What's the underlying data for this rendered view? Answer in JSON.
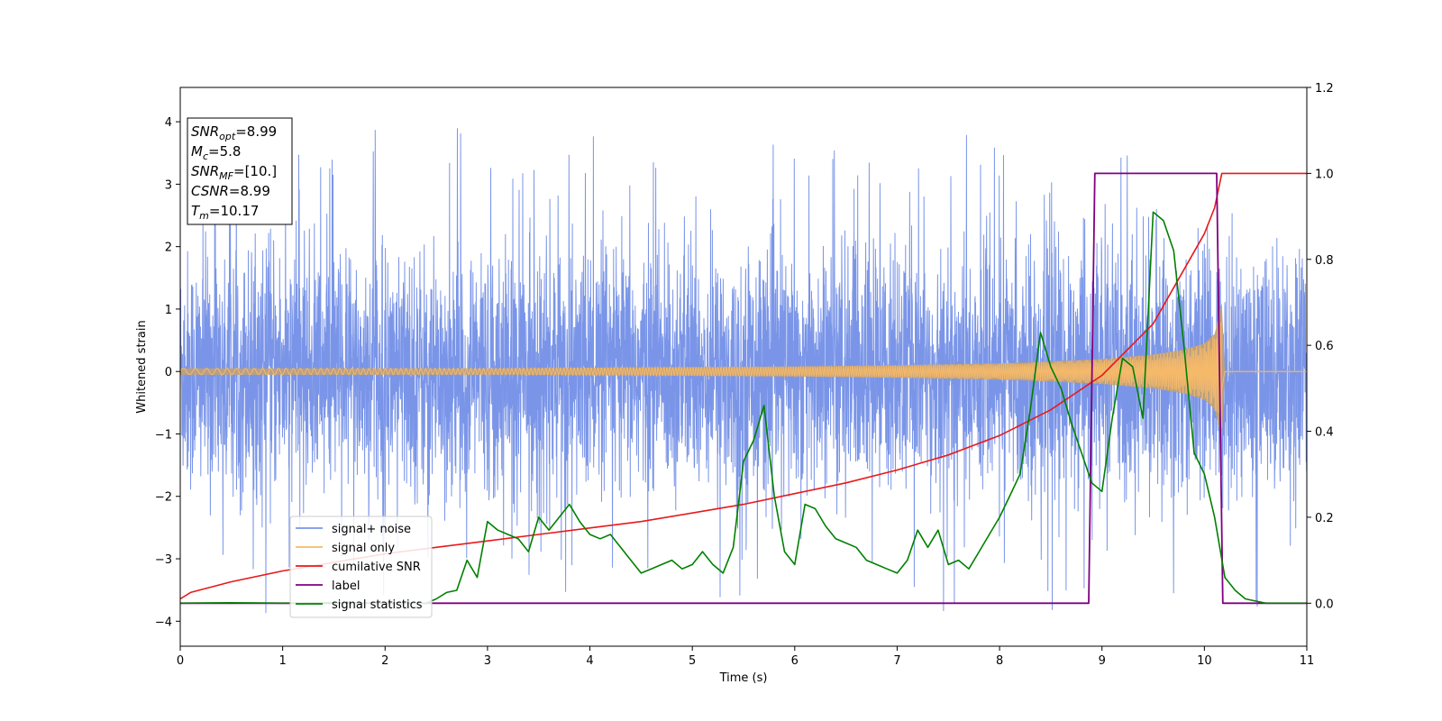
{
  "chart_data": {
    "type": "line",
    "xlabel": "Time (s)",
    "ylabel": "Whitened strain",
    "xlim": [
      0,
      11
    ],
    "ylim_left": [
      -4.4,
      4.55
    ],
    "ylim_right": [
      -0.1,
      1.2
    ],
    "x_ticks": [
      0,
      1,
      2,
      3,
      4,
      5,
      6,
      7,
      8,
      9,
      10,
      11
    ],
    "y_ticks_left": [
      -4,
      -3,
      -2,
      -1,
      0,
      1,
      2,
      3,
      4
    ],
    "y_ticks_right": [
      "0.0",
      "0.2",
      "0.4",
      "0.6",
      "0.8",
      "1.0",
      "1.2"
    ],
    "grid": false,
    "legend_location": "lower-left",
    "info_box": {
      "lines": [
        {
          "label": "SNR",
          "sub": "opt",
          "value": "=8.99"
        },
        {
          "label": "M",
          "sub": "c",
          "value": "=5.8"
        },
        {
          "label": "SNR",
          "sub": "MF",
          "value": "=[10.]"
        },
        {
          "label": "CSNR",
          "sub": "",
          "value": "=8.99"
        },
        {
          "label": "T",
          "sub": "m",
          "value": "=10.17"
        }
      ]
    },
    "series": [
      {
        "name": "signal+ noise",
        "axis": "left",
        "color": "#7a95e8",
        "description_values": {
          "typical_envelope": [
            -2.2,
            2.2
          ],
          "max_spikes": [
            4.17,
            -3.95
          ]
        }
      },
      {
        "name": "signal only",
        "axis": "left",
        "color": "#f5b96a",
        "envelope_x": [
          0,
          1,
          2,
          3,
          4,
          5,
          6,
          7,
          8,
          8.5,
          9,
          9.5,
          9.8,
          10.0,
          10.1,
          10.17,
          10.2,
          11
        ],
        "envelope_y": [
          0.05,
          0.05,
          0.05,
          0.05,
          0.06,
          0.07,
          0.08,
          0.1,
          0.13,
          0.16,
          0.2,
          0.27,
          0.35,
          0.45,
          0.6,
          1.1,
          0.01,
          0.01
        ]
      },
      {
        "name": "cumilative SNR",
        "axis": "right",
        "color": "#e8191b",
        "x": [
          0,
          0.1,
          0.5,
          1,
          1.5,
          2,
          2.5,
          3,
          3.5,
          4,
          4.5,
          5,
          5.5,
          6,
          6.5,
          7,
          7.5,
          8,
          8.5,
          9,
          9.5,
          10,
          10.1,
          10.17,
          10.2,
          11
        ],
        "values": [
          0.01,
          0.025,
          0.05,
          0.075,
          0.095,
          0.115,
          0.13,
          0.145,
          0.16,
          0.175,
          0.19,
          0.21,
          0.23,
          0.255,
          0.28,
          0.31,
          0.345,
          0.39,
          0.45,
          0.53,
          0.65,
          0.86,
          0.92,
          1.0,
          1.0,
          1.0
        ]
      },
      {
        "name": "label",
        "axis": "right",
        "color": "#800080",
        "x": [
          0,
          8.87,
          8.93,
          10.12,
          10.18,
          11
        ],
        "values": [
          0,
          0,
          1,
          1,
          0,
          0
        ]
      },
      {
        "name": "signal statistics",
        "axis": "right",
        "color": "#008000",
        "x": [
          0,
          0.5,
          1,
          1.5,
          2,
          2.4,
          2.5,
          2.6,
          2.7,
          2.8,
          2.9,
          3.0,
          3.1,
          3.2,
          3.3,
          3.4,
          3.5,
          3.6,
          3.7,
          3.8,
          3.9,
          4.0,
          4.1,
          4.2,
          4.3,
          4.4,
          4.5,
          4.6,
          4.7,
          4.8,
          4.9,
          5.0,
          5.1,
          5.2,
          5.3,
          5.4,
          5.5,
          5.6,
          5.7,
          5.8,
          5.9,
          6.0,
          6.1,
          6.2,
          6.3,
          6.4,
          6.5,
          6.6,
          6.7,
          6.8,
          6.9,
          7.0,
          7.1,
          7.2,
          7.3,
          7.4,
          7.5,
          7.6,
          7.7,
          7.8,
          7.9,
          8.0,
          8.1,
          8.2,
          8.3,
          8.4,
          8.5,
          8.6,
          8.7,
          8.8,
          8.9,
          9.0,
          9.1,
          9.2,
          9.3,
          9.4,
          9.5,
          9.6,
          9.7,
          9.8,
          9.9,
          10.0,
          10.1,
          10.2,
          10.3,
          10.4,
          10.6,
          11
        ],
        "values": [
          0.0,
          0.001,
          0.0,
          0.001,
          0.0,
          0.0,
          0.01,
          0.025,
          0.03,
          0.1,
          0.06,
          0.19,
          0.17,
          0.16,
          0.15,
          0.12,
          0.2,
          0.17,
          0.2,
          0.23,
          0.19,
          0.16,
          0.15,
          0.16,
          0.13,
          0.1,
          0.07,
          0.08,
          0.09,
          0.1,
          0.08,
          0.09,
          0.12,
          0.09,
          0.07,
          0.13,
          0.33,
          0.38,
          0.46,
          0.25,
          0.12,
          0.09,
          0.23,
          0.22,
          0.18,
          0.15,
          0.14,
          0.13,
          0.1,
          0.09,
          0.08,
          0.07,
          0.1,
          0.17,
          0.13,
          0.17,
          0.09,
          0.1,
          0.08,
          0.12,
          0.16,
          0.2,
          0.25,
          0.3,
          0.45,
          0.63,
          0.55,
          0.5,
          0.42,
          0.35,
          0.28,
          0.26,
          0.43,
          0.57,
          0.55,
          0.43,
          0.91,
          0.89,
          0.82,
          0.6,
          0.35,
          0.3,
          0.2,
          0.06,
          0.03,
          0.01,
          0.0,
          0.0
        ]
      }
    ]
  }
}
